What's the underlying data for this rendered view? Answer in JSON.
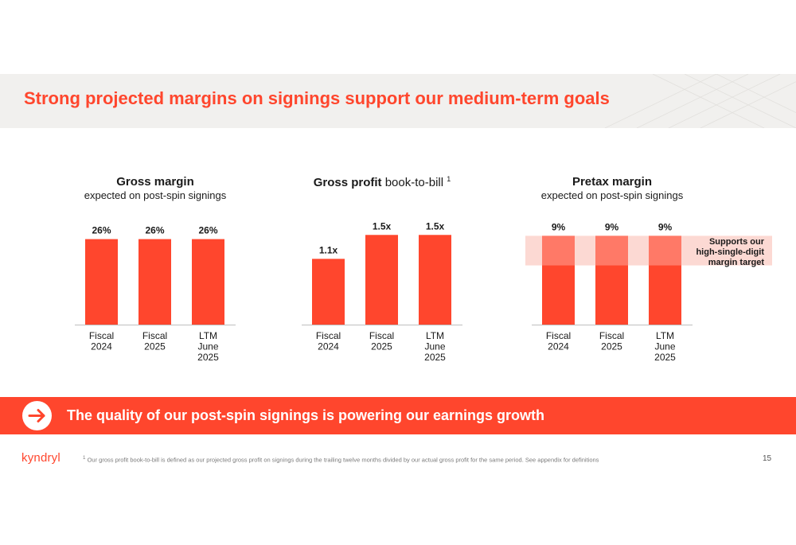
{
  "slide_title": "Strong projected margins on signings support our medium-term goals",
  "colors": {
    "accent": "#ff462d",
    "band_highlight": "#fcd9d3",
    "title_band_bg": "#f1f0ee"
  },
  "chart_data": [
    {
      "type": "bar",
      "title": "Gross margin",
      "subtitle": "expected on post-spin signings",
      "categories": [
        "Fiscal 2024",
        "Fiscal 2025",
        "LTM June 2025"
      ],
      "category_lines": [
        [
          "Fiscal",
          "2024"
        ],
        [
          "Fiscal",
          "2025"
        ],
        [
          "LTM",
          "June",
          "2025"
        ]
      ],
      "values": [
        26,
        26,
        26
      ],
      "labels": [
        "26%",
        "26%",
        "26%"
      ],
      "ylim": [
        0,
        30
      ]
    },
    {
      "type": "bar",
      "title": "Gross profit",
      "title_light": "book-to-bill",
      "title_sup": "1",
      "categories": [
        "Fiscal 2024",
        "Fiscal 2025",
        "LTM June 2025"
      ],
      "category_lines": [
        [
          "Fiscal",
          "2024"
        ],
        [
          "Fiscal",
          "2025"
        ],
        [
          "LTM",
          "June",
          "2025"
        ]
      ],
      "values": [
        1.1,
        1.5,
        1.5
      ],
      "labels": [
        "1.1x",
        "1.5x",
        "1.5x"
      ],
      "ylim": [
        0,
        1.65
      ]
    },
    {
      "type": "bar",
      "title": "Pretax margin",
      "subtitle": "expected on post-spin signings",
      "categories": [
        "Fiscal 2024",
        "Fiscal 2025",
        "LTM June 2025"
      ],
      "category_lines": [
        [
          "Fiscal",
          "2024"
        ],
        [
          "Fiscal",
          "2025"
        ],
        [
          "LTM",
          "June",
          "2025"
        ]
      ],
      "values": [
        9,
        9,
        9
      ],
      "labels": [
        "9%",
        "9%",
        "9%"
      ],
      "ylim": [
        0,
        10
      ],
      "band": {
        "from": 6,
        "to": 9,
        "note_lines": [
          "Supports our",
          "high-single-digit",
          "margin target"
        ]
      }
    }
  ],
  "cta": {
    "text": "The quality of our post-spin signings is powering our earnings growth",
    "icon": "arrow-right-icon"
  },
  "footer": {
    "logo": "kyndryl",
    "footnote_sup": "1",
    "footnote": "Our gross profit book-to-bill is defined as our projected gross profit on signings during the trailing twelve months divided by our actual gross profit for the same period.  See appendix for definitions",
    "page_number": "15"
  }
}
